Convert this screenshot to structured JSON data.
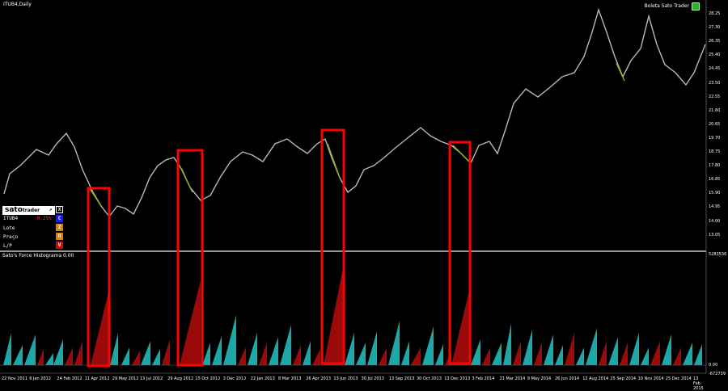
{
  "window": {
    "symbol_title": "ITUB4,Daily",
    "boleta_title": "Boleta Sato Trader"
  },
  "indicator": {
    "title": "Sato's Force Histograma 0.00",
    "scale_top": "5283536",
    "scale_zero": "0.00",
    "scale_bottom": "-672739"
  },
  "panel": {
    "brand": "sato",
    "brand_sub": "trader",
    "arrow_icon": "arrow-up-right-icon",
    "close_label": "X",
    "ticker": "ITUB4",
    "change": "-0.25%",
    "buy_label": "C",
    "lote_label": "Lote",
    "lote_btn": "Z",
    "preco_label": "Preço",
    "preco_btn": "R",
    "lp_label": "L/P",
    "lp_btn": "V",
    "colors": {
      "buy": "#1a1aff",
      "amber": "#e08000",
      "sell": "#e00000"
    }
  },
  "colors": {
    "price_up": "#b8b8b8",
    "price_yellow": "#a8a820",
    "hist_pos": "#1ea7a7",
    "hist_neg": "#9a0a0a",
    "highlight": "#ff0000"
  },
  "price_axis": [
    "28.25",
    "27.30",
    "26.35",
    "25.40",
    "24.45",
    "23.50",
    "22.55",
    "21.60",
    "20.65",
    "19.70",
    "18.75",
    "17.80",
    "16.85",
    "15.90",
    "14.95",
    "14.00",
    "13.05"
  ],
  "date_axis": [
    "22 Nov 2011",
    "6 Jan 2012",
    "24 Feb 2012",
    "11 Apr 2012",
    "29 May 2012",
    "13 Jul 2012",
    "29 Aug 2012",
    "15 Oct 2012",
    "3 Dec 2012",
    "22 Jan 2013",
    "8 Mar 2013",
    "26 Apr 2013",
    "13 Jun 2013",
    "30 Jul 2013",
    "13 Sep 2013",
    "30 Oct 2013",
    "13 Dec 2013",
    "3 Feb 2014",
    "21 Mar 2014",
    "9 May 2014",
    "26 Jun 2014",
    "12 Aug 2014",
    "25 Sep 2014",
    "10 Nov 2014",
    "25 Dec 2014",
    "13 Feb 2015"
  ]
}
